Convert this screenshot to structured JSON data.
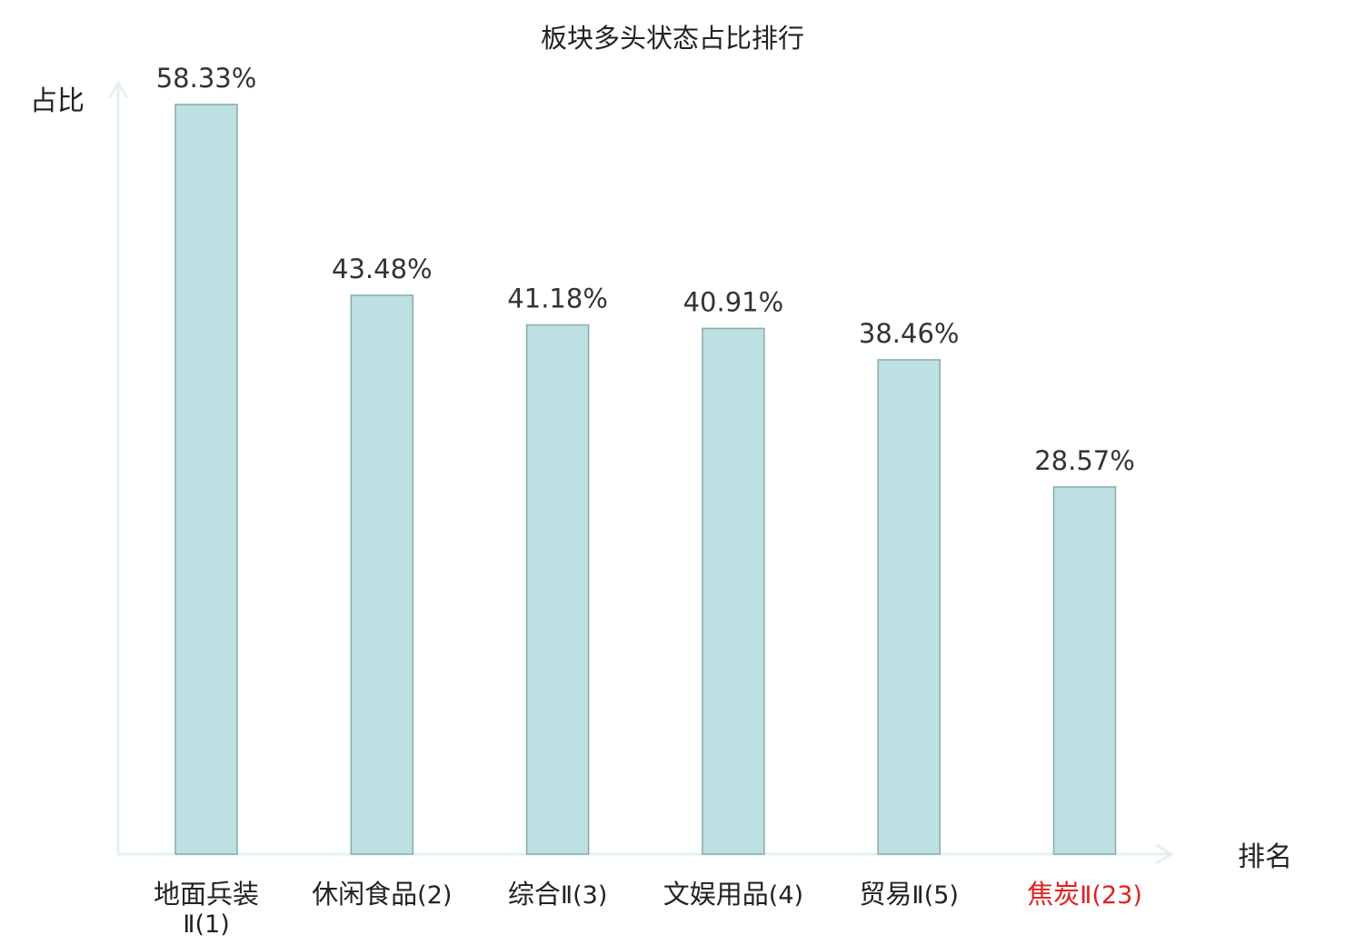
{
  "chart_data": {
    "type": "bar",
    "title": "板块多头状态占比排行",
    "ylabel": "占比",
    "xlabel": "排名",
    "ylim": [
      0,
      60
    ],
    "grid": false,
    "categories": [
      {
        "name": "地面兵装",
        "name_line2": "Ⅱ(1)",
        "highlight": false
      },
      {
        "name": "休闲食品",
        "suffix": "(2)",
        "highlight": false
      },
      {
        "name": "综合",
        "suffix": "Ⅱ(3)",
        "highlight": false
      },
      {
        "name": "文娱用品",
        "suffix": "(4)",
        "highlight": false
      },
      {
        "name": "贸易",
        "suffix": "Ⅱ(5)",
        "highlight": false
      },
      {
        "name": "焦炭",
        "suffix": "Ⅱ(23)",
        "highlight": true
      }
    ],
    "values": [
      58.33,
      43.48,
      41.18,
      40.91,
      38.46,
      28.57
    ],
    "value_labels": [
      "58.33%",
      "43.48%",
      "41.18%",
      "40.91%",
      "38.46%",
      "28.57%"
    ],
    "colors": {
      "bar_fill": "#bde1e3",
      "bar_stroke": "#8aa9aa",
      "axis": "#e0f3f0",
      "text": "#222222",
      "value_text": "#333333",
      "highlight": "#e02020"
    }
  }
}
